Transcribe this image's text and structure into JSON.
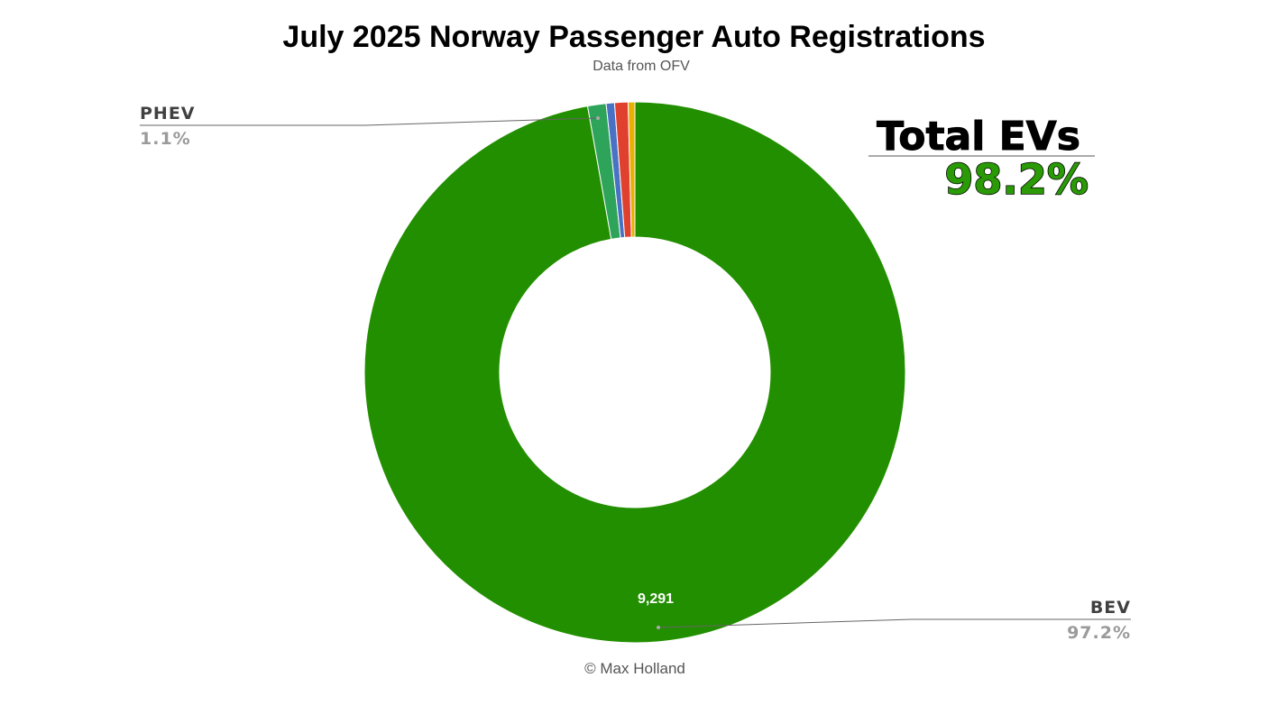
{
  "chart_data": {
    "type": "pie",
    "title": "July 2025 Norway Passenger Auto Registrations",
    "subtitle": "Data from OFV",
    "footer": "© Max Holland",
    "donut": true,
    "slices": [
      {
        "label": "BEV",
        "percent": 97.2,
        "value": 9291,
        "value_label": "9,291",
        "percent_label": "97.2%",
        "color": "#228f00"
      },
      {
        "label": "PHEV",
        "percent": 1.1,
        "percent_label": "1.1%",
        "color": "#2ea35a"
      },
      {
        "label": "",
        "percent": 0.5,
        "color": "#4a72c4"
      },
      {
        "label": "",
        "percent": 0.8,
        "color": "#e0412f"
      },
      {
        "label": "",
        "percent": 0.4,
        "color": "#e8b000"
      }
    ],
    "callout": {
      "title": "Total EVs",
      "value": "98.2%"
    }
  }
}
